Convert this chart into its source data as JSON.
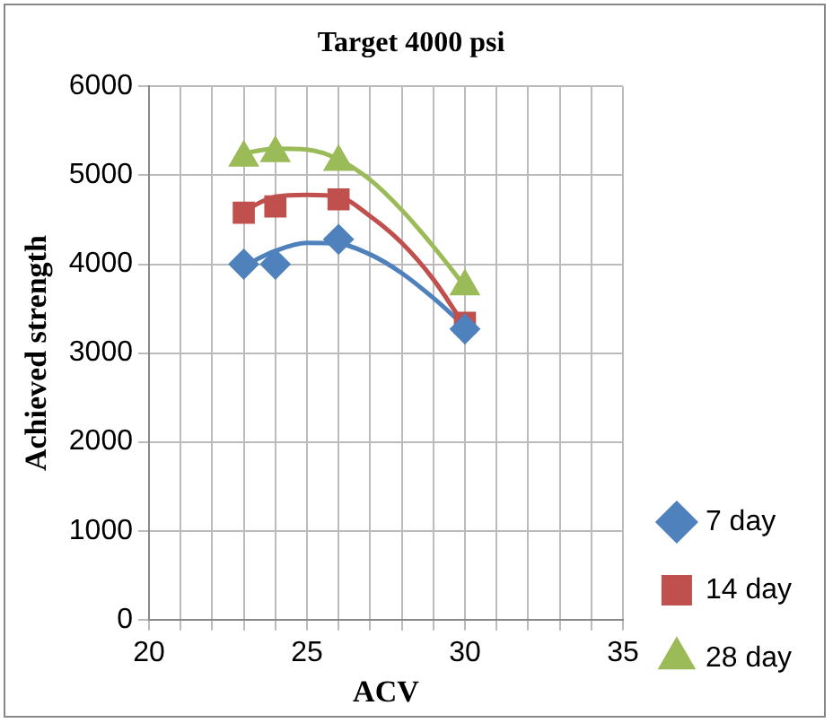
{
  "chart_data": {
    "type": "scatter",
    "title": "Target 4000 psi",
    "xlabel": "ACV",
    "ylabel": "Achieved strength",
    "xlim": [
      20,
      35
    ],
    "xticks": [
      20,
      {
        "value": 21,
        "label": null
      },
      {
        "value": 22,
        "label": null
      },
      {
        "value": 23,
        "label": null
      },
      {
        "value": 24,
        "label": null
      },
      25,
      {
        "value": 26,
        "label": null
      },
      {
        "value": 27,
        "label": null
      },
      {
        "value": 28,
        "label": null
      },
      {
        "value": 29,
        "label": null
      },
      30,
      {
        "value": 31,
        "label": null
      },
      {
        "value": 32,
        "label": null
      },
      {
        "value": 33,
        "label": null
      },
      {
        "value": 34,
        "label": null
      },
      35
    ],
    "ylim": [
      0,
      6000
    ],
    "yticks": [
      0,
      1000,
      2000,
      3000,
      4000,
      5000,
      6000
    ],
    "grid": true,
    "legend": "right",
    "series": [
      {
        "name": "7 day",
        "color": "#4f81bd",
        "marker": "diamond",
        "x": [
          23,
          24,
          26,
          30
        ],
        "values": [
          4000,
          4000,
          4280,
          3270
        ]
      },
      {
        "name": "14 day",
        "color": "#c0504d",
        "marker": "square",
        "x": [
          23,
          24,
          26,
          30
        ],
        "values": [
          4580,
          4650,
          4730,
          3340
        ]
      },
      {
        "name": "28 day",
        "color": "#9bbb59",
        "marker": "triangle",
        "x": [
          23,
          24,
          26,
          30
        ],
        "values": [
          5200,
          5250,
          5150,
          3750
        ]
      },
      {
        "type": "line",
        "color": "#4f81bd",
        "marker": "none",
        "x": [
          23,
          24,
          25,
          26,
          27,
          28,
          29,
          30
        ],
        "values": [
          3980,
          4150,
          4240,
          4230,
          4110,
          3900,
          3620,
          3300
        ]
      },
      {
        "type": "line",
        "color": "#c0504d",
        "marker": "none",
        "x": [
          23,
          24,
          25,
          26,
          27,
          28,
          29,
          30
        ],
        "values": [
          4600,
          4760,
          4780,
          4760,
          4540,
          4240,
          3830,
          3300
        ]
      },
      {
        "type": "line",
        "color": "#9bbb59",
        "marker": "none",
        "x": [
          23,
          24,
          25,
          26,
          27,
          28,
          29,
          30
        ],
        "values": [
          5250,
          5300,
          5290,
          5180,
          4950,
          4610,
          4200,
          3750
        ]
      }
    ]
  }
}
